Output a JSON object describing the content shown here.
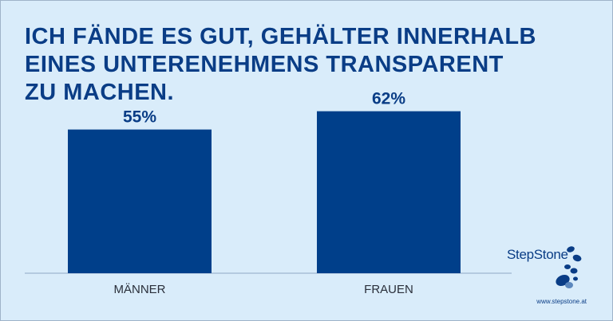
{
  "title_lines": [
    "ICH FÄNDE ES GUT, GEHÄLTER INNERHALB",
    "EINES UNTERENEHMENS TRANSPARENT",
    "ZU MACHEN."
  ],
  "chart_data": {
    "type": "bar",
    "categories": [
      "MÄNNER",
      "FRAUEN"
    ],
    "values": [
      55,
      62
    ],
    "value_labels": [
      "55%",
      "62%"
    ],
    "ylim": [
      0,
      100
    ],
    "grid": false,
    "bar_color": "#003f8a"
  },
  "brand": {
    "logo_text": "StepStone",
    "url": "www.stepstone.at"
  },
  "colors": {
    "background": "#d9ecfa",
    "accent": "#0a3d86"
  }
}
